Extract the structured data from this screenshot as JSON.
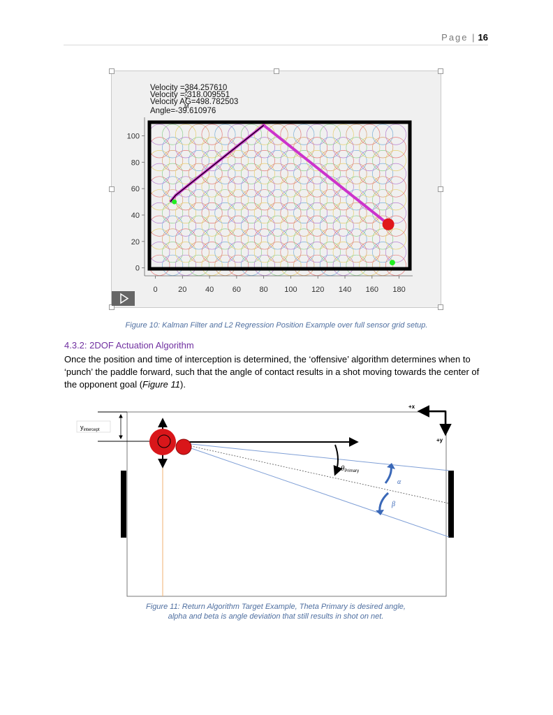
{
  "header": {
    "page_label": "Page",
    "page_number": "16"
  },
  "figure10": {
    "readouts": [
      "Velocity =384.257610",
      "Velocity =-318.009551",
      "Velocity AG=498.782503",
      "Angle=-39.610976"
    ],
    "readout_subscripts": [
      "X",
      "Y",
      "M"
    ],
    "caption": "Figure 10: Kalman Filter and L2 Regression Position Example over full sensor grid setup.",
    "chart_data": {
      "type": "line",
      "x_ticks": [
        "0",
        "20",
        "40",
        "60",
        "80",
        "100",
        "120",
        "140",
        "160",
        "180"
      ],
      "y_ticks": [
        "0",
        "20",
        "40",
        "60",
        "80",
        "100"
      ],
      "xlim": [
        -8,
        190
      ],
      "ylim": [
        -6,
        114
      ],
      "grid": false,
      "boundary": {
        "x": [
          0,
          190
        ],
        "y": [
          0,
          108
        ]
      },
      "trajectory": {
        "x": [
          11,
          15,
          80,
          172
        ],
        "y": [
          50,
          55,
          108,
          33
        ]
      },
      "start_point": {
        "x": 14,
        "y": 50
      },
      "end_point": {
        "x": 172,
        "y": 33
      },
      "marker_point": {
        "x": 175,
        "y": 4
      },
      "sensor_grid": {
        "x_start": 3,
        "x_step": 9.7,
        "count_x": 19,
        "y_start": 2,
        "y_step": 9.9,
        "count_y": 11
      },
      "colors": {
        "trajectory": "#cc33cc",
        "trajectory_core": "#000000",
        "puck": "#e0171a",
        "marker": "#22ee22",
        "boundary": "#000000",
        "circles": [
          "#e47a7a",
          "#7ab0d8",
          "#b87fd0",
          "#8fcf8f",
          "#e5cf6e",
          "#d9a070"
        ]
      }
    },
    "play_icon": "play-icon"
  },
  "section": {
    "heading": "4.3.2: 2DOF Actuation Algorithm",
    "para_text": "Once the position and time of interception is determined, the ‘offensive’ algorithm determines when to ‘punch’ the paddle forward, such that the angle of contact results in a shot moving towards the center of the opponent goal (",
    "para_ref": "Figure 11",
    "para_end": ")."
  },
  "figure11": {
    "y_intercept_main": "y",
    "y_intercept_sub": "intercept",
    "axis_x": "+x",
    "axis_y": "+y",
    "theta_main": "θ",
    "theta_sub": "Primary",
    "alpha": "α",
    "beta": "β",
    "caption_line1": "Figure 11: Return Algorithm Target Example, Theta Primary is desired angle,",
    "caption_line2": "alpha and beta is angle deviation that still results in shot on net.",
    "colors": {
      "paddle": "#d9161a",
      "target_lines": "#7f9fd6",
      "arrows_blue": "#3a68b8",
      "orange_line": "#f0b070"
    }
  }
}
